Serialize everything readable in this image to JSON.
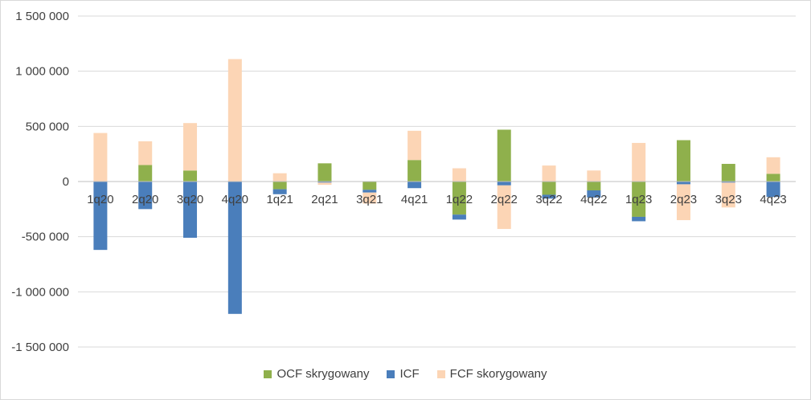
{
  "chart_data": {
    "type": "bar",
    "stacked": true,
    "categories": [
      "1q20",
      "2q20",
      "3q20",
      "4q20",
      "1q21",
      "2q21",
      "3q21",
      "4q21",
      "1q22",
      "2q22",
      "3q22",
      "4q22",
      "1q23",
      "2q23",
      "3q23",
      "4q23"
    ],
    "series": [
      {
        "name": "OCF skrygowany",
        "color": "#8fb04c",
        "values": [
          0,
          150000,
          100000,
          0,
          -70000,
          165000,
          -75000,
          195000,
          -300000,
          470000,
          -120000,
          -80000,
          -320000,
          375000,
          160000,
          70000
        ]
      },
      {
        "name": "ICF",
        "color": "#4a7ebb",
        "values": [
          -620000,
          -250000,
          -510000,
          -1200000,
          -45000,
          -10000,
          -25000,
          -60000,
          -45000,
          -35000,
          -35000,
          -65000,
          -40000,
          -25000,
          -10000,
          -140000
        ]
      },
      {
        "name": "FCF skorygowany",
        "color": "#fcd5b5",
        "values": [
          440000,
          215000,
          430000,
          1110000,
          75000,
          -20000,
          -100000,
          265000,
          120000,
          -395000,
          145000,
          100000,
          350000,
          -325000,
          -225000,
          150000
        ]
      }
    ],
    "yticks": [
      "1 500 000",
      "1 000 000",
      "500 000",
      "0",
      "-500 000",
      "-1 000 000",
      "-1 500 000"
    ],
    "ylim": [
      -1500000,
      1500000
    ],
    "grid": true,
    "legend_position": "bottom",
    "title": "",
    "xlabel": "",
    "ylabel": ""
  }
}
